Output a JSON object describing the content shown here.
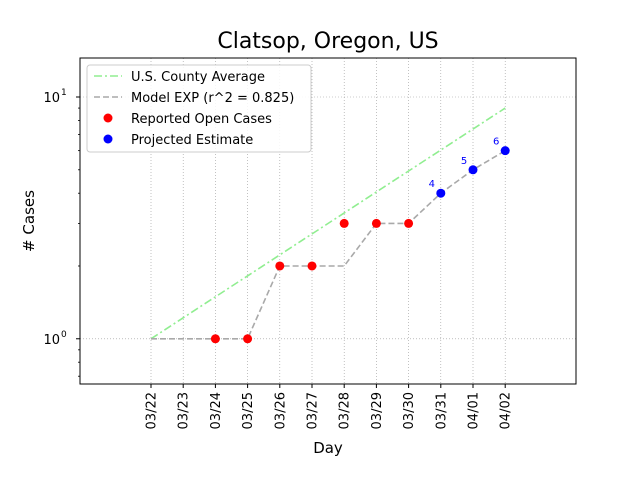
{
  "chart_data": {
    "type": "line",
    "title": "Clatsop, Oregon, US",
    "xlabel": "Day",
    "ylabel": "# Cases",
    "yscale": "log",
    "ylim": [
      0.65,
      14.5
    ],
    "grid": true,
    "legend_position": "top-left",
    "categories": [
      "03/22",
      "03/23",
      "03/24",
      "03/25",
      "03/26",
      "03/27",
      "03/28",
      "03/29",
      "03/30",
      "03/31",
      "04/01",
      "04/02"
    ],
    "y_ticks": [
      {
        "value": 1,
        "base": "10",
        "exp": "0"
      },
      {
        "value": 10,
        "base": "10",
        "exp": "1"
      }
    ],
    "series": [
      {
        "name": "U.S. County Average",
        "kind": "line",
        "style": "dashdot",
        "color": "#90ee90",
        "x": [
          "03/22",
          "04/02"
        ],
        "values": [
          1.0,
          9.0
        ]
      },
      {
        "name": "Model EXP (r^2 = 0.825)",
        "kind": "line",
        "style": "dashed",
        "color": "#a9a9a9",
        "x": [
          "03/22",
          "03/23",
          "03/24",
          "03/25",
          "03/26",
          "03/27",
          "03/28",
          "03/29",
          "03/30",
          "03/31",
          "04/01",
          "04/02"
        ],
        "values": [
          1,
          1,
          1,
          1,
          2,
          2,
          2,
          3,
          3,
          4,
          5,
          6
        ]
      },
      {
        "name": "Reported Open Cases",
        "kind": "scatter",
        "color": "#ff0000",
        "x": [
          "03/24",
          "03/25",
          "03/26",
          "03/27",
          "03/28",
          "03/29",
          "03/30"
        ],
        "values": [
          1,
          1,
          2,
          2,
          3,
          3,
          3
        ]
      },
      {
        "name": "Projected Estimate",
        "kind": "scatter",
        "color": "#0000ff",
        "x": [
          "03/31",
          "04/01",
          "04/02"
        ],
        "values": [
          4,
          5,
          6
        ],
        "labels": [
          "4",
          "5",
          "6"
        ]
      }
    ]
  }
}
